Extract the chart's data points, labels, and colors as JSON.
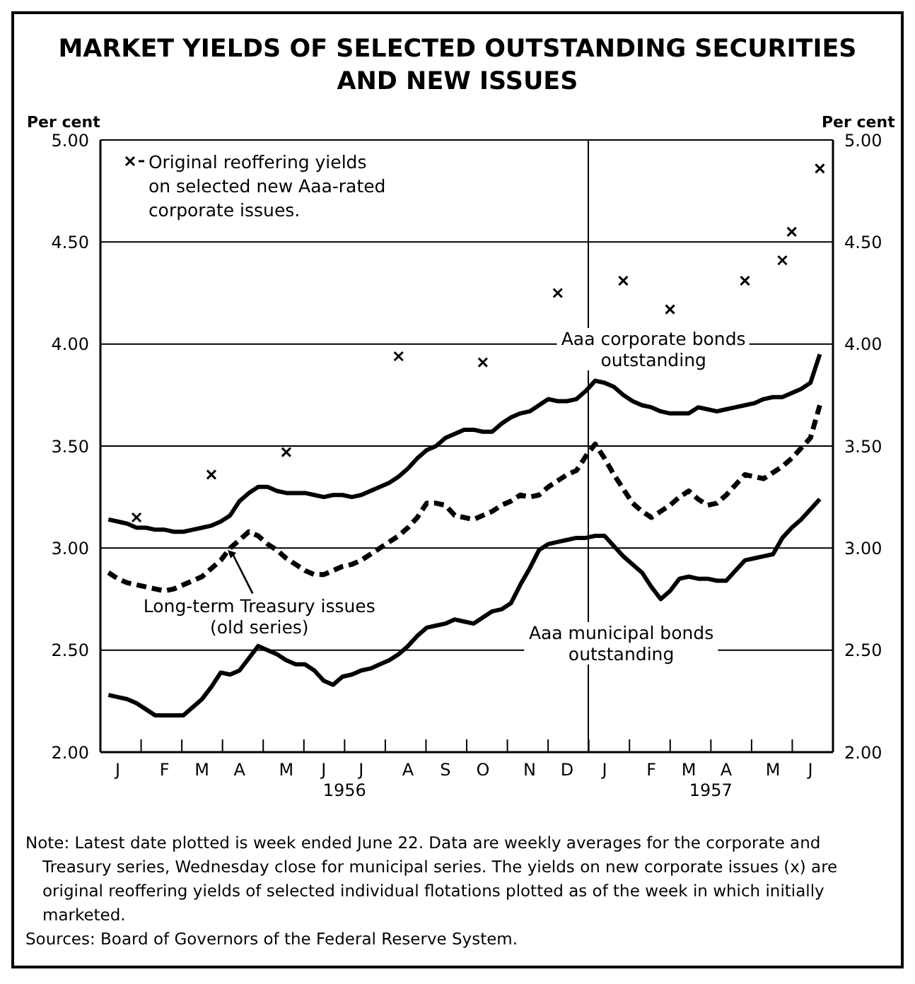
{
  "chart_data": {
    "type": "line",
    "title": "MARKET YIELDS OF SELECTED OUTSTANDING SECURITIES AND NEW ISSUES",
    "ylabel": "Per cent",
    "y2label": "Per cent",
    "categories": [
      null,
      "J",
      null,
      null,
      null,
      null,
      "F",
      null,
      null,
      null,
      "M",
      null,
      null,
      null,
      "A",
      null,
      null,
      null,
      null,
      "M",
      null,
      null,
      null,
      "J",
      null,
      null,
      null,
      "J",
      null,
      null,
      null,
      null,
      "A",
      null,
      null,
      null,
      "S",
      null,
      null,
      null,
      "O",
      null,
      null,
      null,
      null,
      "N",
      null,
      null,
      null,
      "D",
      null,
      null,
      null,
      "J",
      null,
      null,
      null,
      null,
      "F",
      null,
      null,
      null,
      "M",
      null,
      null,
      null,
      "A",
      null,
      null,
      null,
      null,
      "M",
      null,
      null,
      null,
      "J",
      null
    ],
    "ylim": [
      2,
      5
    ],
    "yticks": [
      {
        "value": 2,
        "label": "2.00"
      },
      {
        "value": 2.5,
        "label": "2.50"
      },
      {
        "value": 3,
        "label": "3.00"
      },
      {
        "value": 3.5,
        "label": "3.50"
      },
      {
        "value": 4,
        "label": "4.00"
      },
      {
        "value": 4.5,
        "label": "4.50"
      },
      {
        "value": 5,
        "label": "5.00"
      }
    ],
    "y2lim": [
      2,
      5
    ],
    "y2ticks": [
      {
        "value": 2,
        "label": "2.00"
      },
      {
        "value": 2.5,
        "label": "2.50"
      },
      {
        "value": 3,
        "label": "3.00"
      },
      {
        "value": 3.5,
        "label": "3.50"
      },
      {
        "value": 4,
        "label": "4.00"
      },
      {
        "value": 4.5,
        "label": "4.50"
      },
      {
        "value": 5,
        "label": "5.00"
      }
    ],
    "grid": "y",
    "legend": "top left",
    "marker": "none",
    "series": [
      {
        "name": "Aaa corporate bonds outstanding",
        "color": "#000000",
        "line_style": "solid",
        "values": [
          3.14,
          3.13,
          3.12,
          3.1,
          3.1,
          3.09,
          3.09,
          3.08,
          3.08,
          3.09,
          3.1,
          3.11,
          3.13,
          3.16,
          3.23,
          3.27,
          3.3,
          3.3,
          3.28,
          3.27,
          3.27,
          3.27,
          3.26,
          3.25,
          3.26,
          3.26,
          3.25,
          3.26,
          3.28,
          3.3,
          3.32,
          3.35,
          3.39,
          3.44,
          3.48,
          3.5,
          3.54,
          3.56,
          3.58,
          3.58,
          3.57,
          3.57,
          3.61,
          3.64,
          3.66,
          3.67,
          3.7,
          3.73,
          3.72,
          3.72,
          3.73,
          3.77,
          3.82,
          3.81,
          3.79,
          3.75,
          3.72,
          3.7,
          3.69,
          3.67,
          3.66,
          3.66,
          3.66,
          3.69,
          3.68,
          3.67,
          3.68,
          3.69,
          3.7,
          3.71,
          3.73,
          3.74,
          3.74,
          3.76,
          3.78,
          3.81,
          3.95
        ]
      },
      {
        "name": "Long-term Treasury issues (old series)",
        "color": "#000000",
        "line_style": "dashed",
        "values": [
          2.88,
          2.85,
          2.83,
          2.82,
          2.81,
          2.8,
          2.79,
          2.8,
          2.82,
          2.84,
          2.86,
          2.9,
          2.94,
          3.0,
          3.04,
          3.08,
          3.06,
          3.02,
          2.99,
          2.95,
          2.92,
          2.89,
          2.87,
          2.87,
          2.89,
          2.91,
          2.92,
          2.94,
          2.97,
          3.0,
          3.03,
          3.06,
          3.1,
          3.15,
          3.22,
          3.22,
          3.21,
          3.16,
          3.15,
          3.14,
          3.16,
          3.18,
          3.21,
          3.23,
          3.26,
          3.25,
          3.26,
          3.3,
          3.33,
          3.36,
          3.38,
          3.45,
          3.51,
          3.44,
          3.36,
          3.29,
          3.22,
          3.18,
          3.15,
          3.18,
          3.21,
          3.25,
          3.28,
          3.24,
          3.21,
          3.22,
          3.26,
          3.31,
          3.36,
          3.35,
          3.34,
          3.37,
          3.4,
          3.44,
          3.49,
          3.54,
          3.7
        ]
      },
      {
        "name": "Aaa municipal bonds outstanding",
        "color": "#000000",
        "line_style": "solid",
        "values": [
          2.28,
          2.27,
          2.26,
          2.24,
          2.21,
          2.18,
          2.18,
          2.18,
          2.18,
          2.22,
          2.26,
          2.32,
          2.39,
          2.38,
          2.4,
          2.46,
          2.52,
          2.5,
          2.48,
          2.45,
          2.43,
          2.43,
          2.4,
          2.35,
          2.33,
          2.37,
          2.38,
          2.4,
          2.41,
          2.43,
          2.45,
          2.48,
          2.52,
          2.57,
          2.61,
          2.62,
          2.63,
          2.65,
          2.64,
          2.63,
          2.66,
          2.69,
          2.7,
          2.73,
          2.82,
          2.9,
          2.99,
          3.02,
          3.03,
          3.04,
          3.05,
          3.05,
          3.06,
          3.06,
          3.01,
          2.96,
          2.92,
          2.88,
          2.81,
          2.75,
          2.79,
          2.85,
          2.86,
          2.85,
          2.85,
          2.84,
          2.84,
          2.89,
          2.94,
          2.95,
          2.96,
          2.97,
          3.05,
          3.1,
          3.14,
          3.19,
          3.24
        ]
      },
      {
        "name": "Original reoffering yields on selected new Aaa-rated corporate issues.",
        "type": "scatter",
        "marker": "cross",
        "color": "#000000",
        "values": [
          null,
          null,
          null,
          3.15,
          null,
          null,
          null,
          null,
          null,
          null,
          null,
          3.36,
          null,
          null,
          null,
          null,
          null,
          null,
          null,
          3.47,
          null,
          null,
          null,
          null,
          null,
          null,
          null,
          null,
          null,
          null,
          null,
          3.94,
          null,
          null,
          null,
          null,
          null,
          null,
          null,
          null,
          3.91,
          null,
          null,
          null,
          null,
          null,
          null,
          null,
          4.25,
          null,
          null,
          null,
          null,
          null,
          null,
          4.31,
          null,
          null,
          null,
          null,
          4.17,
          null,
          null,
          null,
          null,
          null,
          null,
          null,
          4.31,
          null,
          null,
          null,
          4.41,
          4.55,
          null,
          null,
          4.86
        ]
      }
    ],
    "annotations": [
      "1956",
      "1957",
      "Note: Latest date plotted is week ended June 22. Data are weekly averages for the corporate and Treasury series, Wednesday close for municipal series. The yields on new corporate issues (x) are original reoffering yields of selected individual flotations plotted as of the week in which initially marketed.",
      "Sources: Board of Governors of the Federal Reserve System."
    ]
  }
}
